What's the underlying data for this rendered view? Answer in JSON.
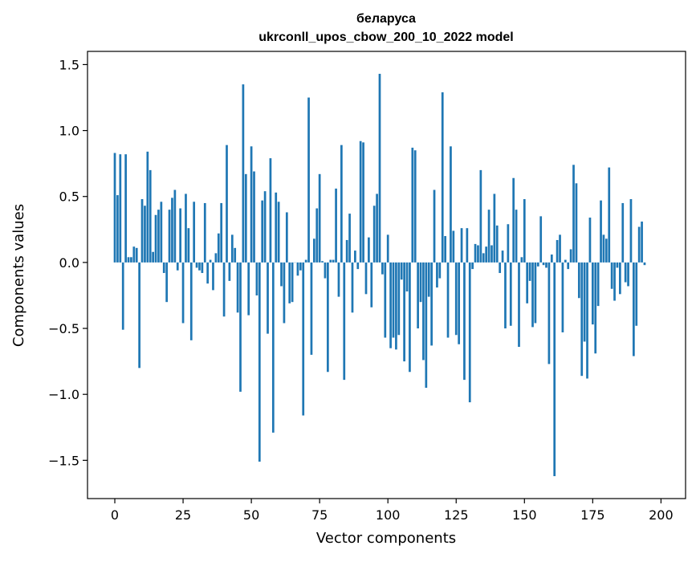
{
  "chart_data": {
    "type": "bar",
    "title_line1": "беларуса",
    "title_line2": "ukrconll_upos_cbow_200_10_2022 model",
    "xlabel": "Vector components",
    "ylabel": "Components values",
    "xlim": [
      -10,
      209
    ],
    "ylim": [
      -1.79,
      1.6
    ],
    "xticks": [
      0,
      25,
      50,
      75,
      100,
      125,
      150,
      175,
      200
    ],
    "yticks": [
      -1.5,
      -1.0,
      -0.5,
      0.0,
      0.5,
      1.0,
      1.5
    ],
    "ytick_labels": [
      "−1.5",
      "−1.0",
      "−0.5",
      "0.0",
      "0.5",
      "1.0",
      "1.5"
    ],
    "bar_color": "#1f77b4",
    "grid": false,
    "values": [
      0.83,
      0.51,
      0.82,
      -0.51,
      0.82,
      0.04,
      0.04,
      0.12,
      0.11,
      -0.8,
      0.48,
      0.43,
      0.84,
      0.7,
      0.08,
      0.36,
      0.4,
      0.46,
      -0.08,
      -0.3,
      0.4,
      0.49,
      0.55,
      -0.06,
      0.41,
      -0.46,
      0.52,
      0.26,
      -0.59,
      0.46,
      -0.04,
      -0.06,
      -0.08,
      0.45,
      -0.16,
      0.02,
      -0.21,
      0.07,
      0.22,
      0.45,
      -0.41,
      0.89,
      -0.14,
      0.21,
      0.11,
      -0.38,
      -0.98,
      1.35,
      0.67,
      -0.4,
      0.88,
      0.69,
      -0.25,
      -1.51,
      0.47,
      0.54,
      -0.54,
      0.79,
      -1.29,
      0.53,
      0.46,
      -0.18,
      -0.46,
      0.38,
      -0.31,
      -0.3,
      0.0,
      -0.1,
      -0.06,
      -1.16,
      0.02,
      1.25,
      -0.7,
      0.18,
      0.41,
      0.67,
      0.01,
      -0.12,
      -0.83,
      0.02,
      0.02,
      0.56,
      -0.26,
      0.89,
      -0.89,
      0.17,
      0.37,
      -0.38,
      0.09,
      -0.05,
      0.92,
      0.91,
      -0.24,
      0.19,
      -0.34,
      0.43,
      0.52,
      1.43,
      -0.09,
      -0.57,
      0.21,
      -0.65,
      -0.57,
      -0.66,
      -0.55,
      -0.13,
      -0.75,
      -0.22,
      -0.83,
      0.87,
      0.85,
      -0.5,
      -0.3,
      -0.74,
      -0.95,
      -0.26,
      -0.63,
      0.55,
      -0.19,
      -0.12,
      1.29,
      0.2,
      -0.57,
      0.88,
      0.24,
      -0.55,
      -0.62,
      0.26,
      -0.89,
      0.26,
      -1.06,
      -0.05,
      0.14,
      0.13,
      0.7,
      0.07,
      0.12,
      0.4,
      0.13,
      0.52,
      0.28,
      -0.08,
      0.09,
      -0.5,
      0.29,
      -0.48,
      0.64,
      0.4,
      -0.64,
      0.04,
      0.48,
      -0.31,
      -0.14,
      -0.49,
      -0.46,
      -0.03,
      0.35,
      -0.02,
      -0.04,
      -0.77,
      0.06,
      -1.62,
      0.17,
      0.21,
      -0.53,
      0.02,
      -0.05,
      0.1,
      0.74,
      0.6,
      -0.27,
      -0.86,
      -0.6,
      -0.88,
      0.34,
      -0.47,
      -0.69,
      -0.33,
      0.47,
      0.21,
      0.18,
      0.72,
      -0.2,
      -0.29,
      -0.04,
      -0.24,
      0.45,
      -0.15,
      -0.18,
      0.48,
      -0.71,
      -0.48,
      0.27,
      0.31,
      -0.02
    ]
  }
}
